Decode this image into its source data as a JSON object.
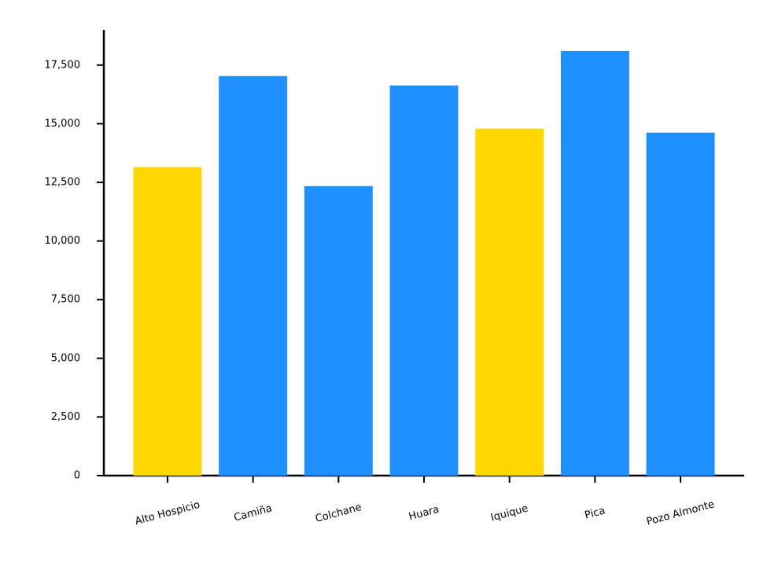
{
  "chart_data": {
    "type": "bar",
    "categories": [
      "Alto Hospicio",
      "Camiña",
      "Colchane",
      "Huara",
      "Iquique",
      "Pica",
      "Pozo Almonte"
    ],
    "values": [
      13150,
      17030,
      12340,
      16630,
      14790,
      18100,
      14620
    ],
    "colors": [
      "#ffd700",
      "#1e90ff",
      "#1e90ff",
      "#1e90ff",
      "#ffd700",
      "#1e90ff",
      "#1e90ff"
    ],
    "ylim": [
      0,
      19000
    ],
    "yticks": [
      0,
      {
        "value": 2500,
        "label": "2,500"
      },
      {
        "value": 5000,
        "label": "5,000"
      },
      {
        "value": 7500,
        "label": "7,500"
      },
      {
        "value": 10000,
        "label": "10,000"
      },
      {
        "value": 12500,
        "label": "12,500"
      },
      {
        "value": 15000,
        "label": "15,000"
      },
      {
        "value": 17500,
        "label": "17,500"
      }
    ],
    "grid": false
  }
}
